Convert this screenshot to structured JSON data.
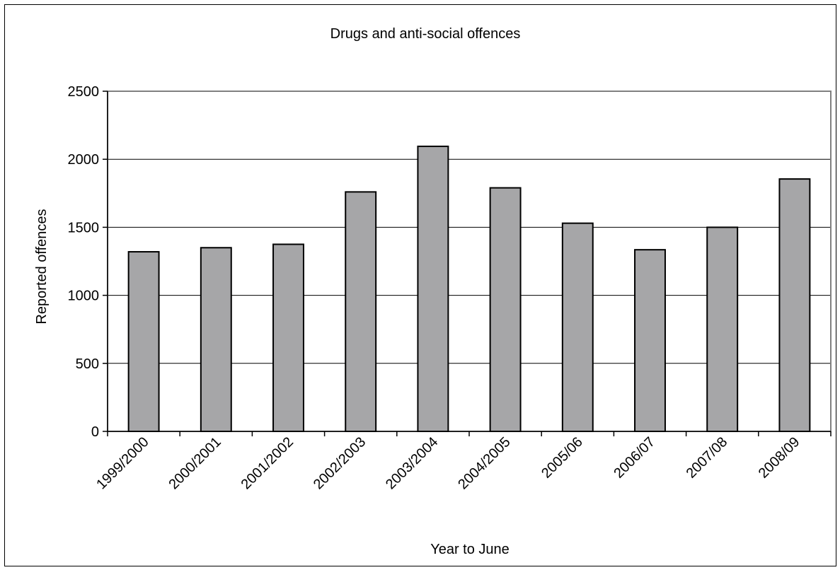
{
  "chart_data": {
    "type": "bar",
    "title": "Drugs and anti-social offences",
    "xlabel": "Year to June",
    "ylabel": "Reported offences",
    "categories": [
      "1999/2000",
      "2000/2001",
      "2001/2002",
      "2002/2003",
      "2003/2004",
      "2004/2005",
      "2005/06",
      "2006/07",
      "2007/08",
      "2008/09"
    ],
    "values": [
      1320,
      1350,
      1375,
      1760,
      2095,
      1790,
      1530,
      1335,
      1500,
      1855
    ],
    "ylim": [
      0,
      2500
    ],
    "yticks": [
      0,
      500,
      1000,
      1500,
      2000,
      2500
    ],
    "grid": true,
    "legend": "none",
    "colors": {
      "bar_fill": "#a6a6a8",
      "bar_stroke": "#000000",
      "plot_border": "#808080",
      "gridline": "#000000"
    }
  }
}
